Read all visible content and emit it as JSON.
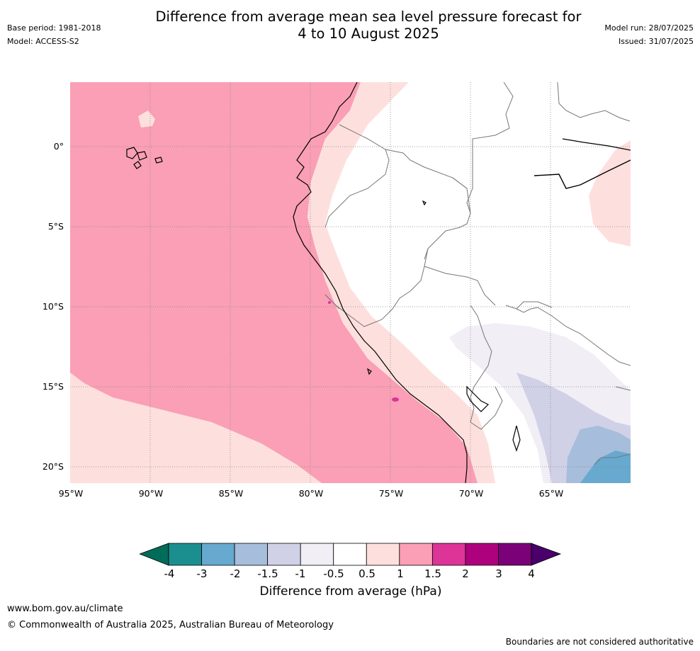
{
  "title_line1": "Difference from average mean sea level pressure forecast for",
  "title_line2": "4 to 10 August 2025",
  "base_period": "Base period: 1981-2018",
  "model": "Model: ACCESS-S2",
  "model_run": "Model run: 28/07/2025",
  "issued": "Issued: 31/07/2025",
  "lat_labels": [
    "0°",
    "5°S",
    "10°S",
    "15°S",
    "20°S"
  ],
  "lon_labels": [
    "95°W",
    "90°W",
    "85°W",
    "80°W",
    "75°W",
    "70°W",
    "65°W"
  ],
  "map_extent": {
    "lon_min": -95,
    "lon_max": -60,
    "lat_min": -21,
    "lat_max": 4
  },
  "colorbar": {
    "title": "Difference from average (hPa)",
    "tick_labels": [
      "-4",
      "-3",
      "-2",
      "-1.5",
      "-1",
      "-0.5",
      "0.5",
      "1",
      "1.5",
      "2",
      "3",
      "4"
    ],
    "colors": [
      "#1b8f8f",
      "#67a9cf",
      "#a6bddb",
      "#d0d1e6",
      "#f1eef6",
      "#ffffff",
      "#fde0dd",
      "#fa9fb5",
      "#dd3497",
      "#ae017e",
      "#7a0177"
    ],
    "under_color": "#016c59",
    "over_color": "#49006a"
  },
  "footer_url": "www.bom.gov.au/climate",
  "footer_copyright": "© Commonwealth of Australia 2025, Australian Bureau of Meteorology",
  "footer_boundaries": "Boundaries are not considered authoritative"
}
